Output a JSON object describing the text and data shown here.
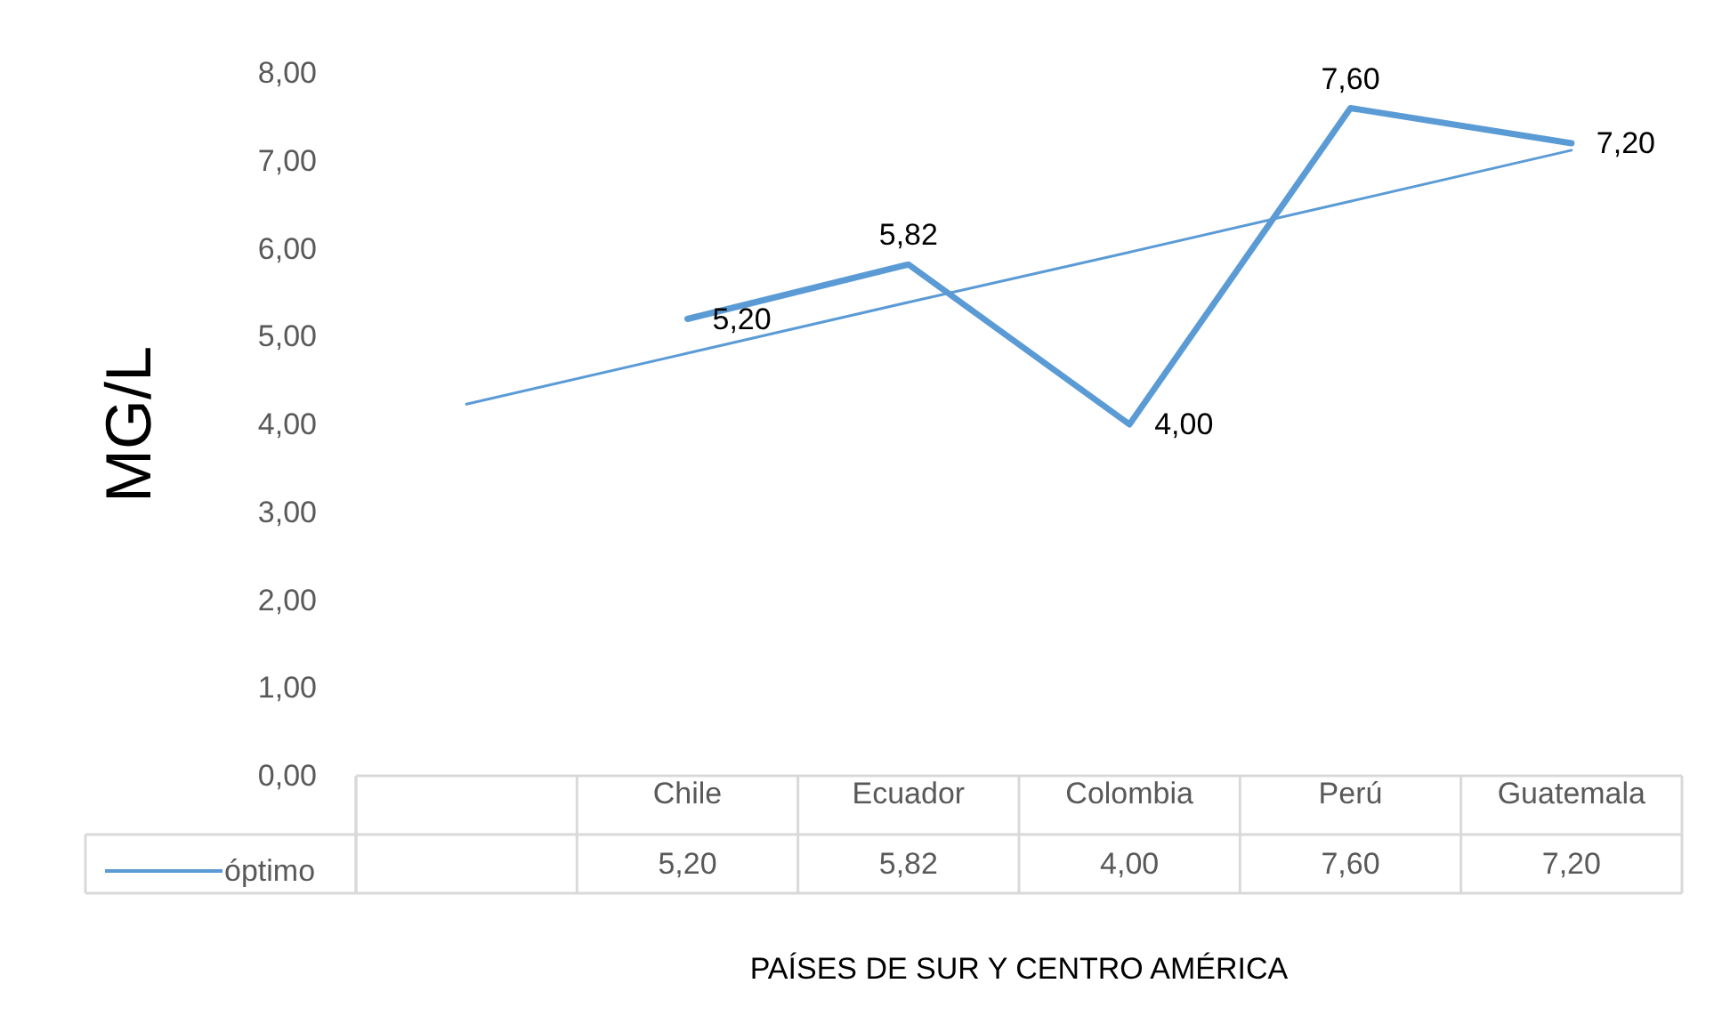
{
  "chart_data": {
    "type": "line",
    "xlabel": "PAÍSES DE SUR Y CENTRO AMÉRICA",
    "ylabel": "MG/L",
    "categories": [
      null,
      "Chile",
      "Ecuador",
      "Colombia",
      "Perú",
      "Guatemala"
    ],
    "series": [
      {
        "name": "óptimo",
        "color": "#5b9bd5",
        "values": [
          null,
          5.2,
          5.82,
          4.0,
          7.6,
          7.2
        ],
        "value_labels": [
          null,
          "5,20",
          "5,82",
          "4,00",
          "7,60",
          "7,20"
        ]
      },
      {
        "type": "line",
        "color": "#5b9bd5",
        "values": [
          4.23,
          4.81,
          5.39,
          5.96,
          6.54,
          7.12
        ]
      }
    ],
    "ylim": [
      0,
      8
    ],
    "yticks": [
      {
        "value": 0,
        "label": "0,00"
      },
      {
        "value": 1,
        "label": "1,00"
      },
      {
        "value": 2,
        "label": "2,00"
      },
      {
        "value": 3,
        "label": "3,00"
      },
      {
        "value": 4,
        "label": "4,00"
      },
      {
        "value": 5,
        "label": "5,00"
      },
      {
        "value": 6,
        "label": "6,00"
      },
      {
        "value": 7,
        "label": "7,00"
      },
      {
        "value": 8,
        "label": "8,00"
      }
    ],
    "grid": false,
    "legend": "bottom left",
    "marker": "none"
  }
}
